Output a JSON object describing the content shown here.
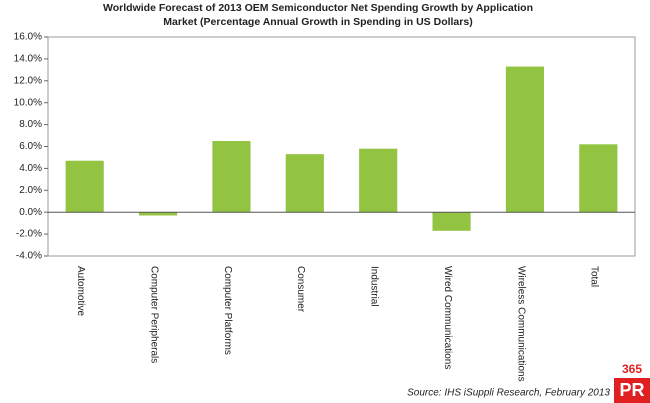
{
  "chart_data": {
    "type": "bar",
    "title_lines": [
      "Worldwide Forecast of 2013 OEM Semiconductor Net Spending Growth by Application",
      "Market  (Percentage Annual Growth in Spending in US Dollars)"
    ],
    "categories": [
      "Automotive",
      "Computer Peripherals",
      "Computer Platforms",
      "Consumer",
      "Industrial",
      "Wired Communications",
      "Wireless Communications",
      "Total"
    ],
    "values": [
      4.7,
      -0.3,
      6.5,
      5.3,
      5.8,
      -1.7,
      13.3,
      6.2
    ],
    "color": "#92c441",
    "ylim": [
      -4,
      16
    ],
    "yticks": [
      {
        "value": -4,
        "label": "-4.0%"
      },
      {
        "value": -2,
        "label": "-2.0%"
      },
      {
        "value": 0,
        "label": "0.0%"
      },
      {
        "value": 2,
        "label": "2.0%"
      },
      {
        "value": 4,
        "label": "4.0%"
      },
      {
        "value": 6,
        "label": "6.0%"
      },
      {
        "value": 8,
        "label": "8.0%"
      },
      {
        "value": 10,
        "label": "10.0%"
      },
      {
        "value": 12,
        "label": "12.0%"
      },
      {
        "value": 14,
        "label": "14.0%"
      },
      {
        "value": 16,
        "label": "16.0%"
      }
    ],
    "grid": false,
    "source": "Source: IHS iSuppli Research, February 2013",
    "logo": [
      "365",
      "PR"
    ]
  }
}
